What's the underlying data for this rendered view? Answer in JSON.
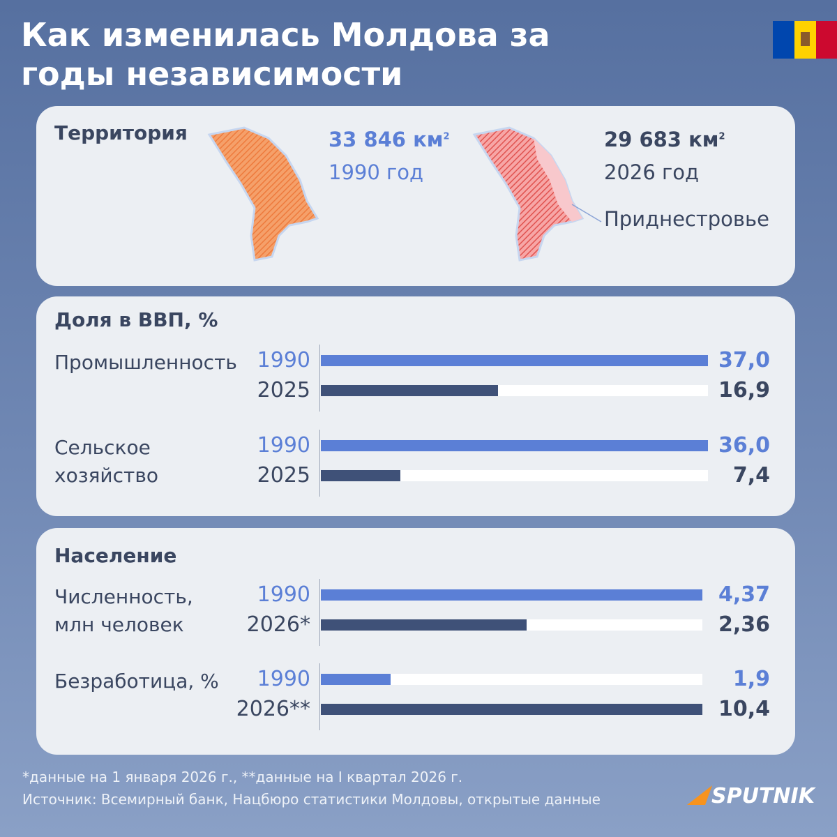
{
  "header": {
    "title": "Как изменилась Молдова за годы независимости"
  },
  "territory": {
    "title": "Территория",
    "items": [
      {
        "area": "33 846 км",
        "sup": "2",
        "year": "1990 год"
      },
      {
        "area": "29 683 км",
        "sup": "2",
        "year": "2026 год",
        "note": "Приднестровье"
      }
    ]
  },
  "gdp": {
    "title": "Доля в ВВП, %",
    "groups": [
      {
        "label_lines": [
          "Промышленность"
        ],
        "rows": [
          {
            "year": "1990",
            "value": 37,
            "value_label": "37,0"
          },
          {
            "year": "2025",
            "value": 16.9,
            "value_label": "16,9"
          }
        ]
      },
      {
        "label_lines": [
          "Сельское",
          "хозяйство"
        ],
        "rows": [
          {
            "year": "1990",
            "value": 36,
            "value_label": "36,0"
          },
          {
            "year": "2025",
            "value": 7.4,
            "value_label": "7,4"
          }
        ]
      }
    ]
  },
  "population": {
    "title": "Население",
    "groups": [
      {
        "label_lines": [
          "Численность,",
          "млн человек"
        ],
        "rows": [
          {
            "year": "1990",
            "value": 4.37,
            "value_label": "4,37"
          },
          {
            "year": "2026*",
            "value": 2.36,
            "value_label": "2,36"
          }
        ]
      },
      {
        "label_lines": [
          "Безработица, %"
        ],
        "rows": [
          {
            "year": "1990",
            "value": 1.9,
            "value_label": "1,9"
          },
          {
            "year": "2026**",
            "value": 10.4,
            "value_label": "10,4"
          }
        ]
      }
    ]
  },
  "footer": {
    "notes": "*данные на 1 января 2026 г., **данные на I квартал 2026 г.",
    "source": "Источник: Всемирный банк, Нацбюро статистики Молдовы, открытые данные",
    "logo": "SPUTNIK"
  }
}
